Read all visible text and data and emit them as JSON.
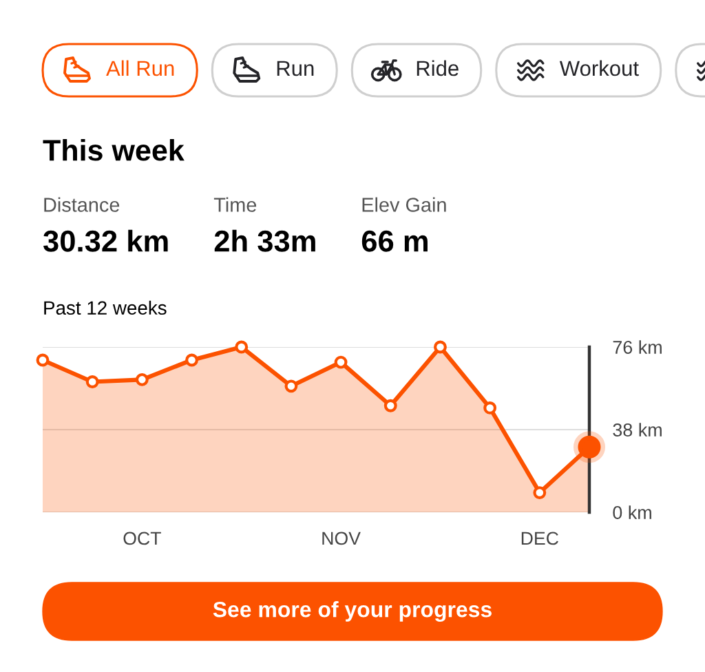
{
  "chart_data": [
    {
      "type": "other",
      "annotations": [
        "All Run",
        "Run",
        "Ride",
        "Workout"
      ]
    },
    {
      "type": "other",
      "title": "This week",
      "annotations": [
        "Distance",
        "30.32 km",
        "Time",
        "2h 33m",
        "Elev Gain",
        "66 m"
      ]
    },
    {
      "type": "area",
      "title": "Past 12 weeks",
      "categories": [
        null,
        null,
        "OCT",
        null,
        null,
        null,
        "NOV",
        null,
        null,
        null,
        "DEC",
        null
      ],
      "series": [
        {
          "color": "#fc5200",
          "values": [
            70,
            60,
            61,
            70,
            76,
            58,
            69,
            49,
            76,
            48,
            9,
            30
          ]
        },
        {
          "type": "scatter",
          "color": "#fc5200",
          "values": [
            null,
            null,
            null,
            null,
            null,
            null,
            null,
            null,
            null,
            null,
            null,
            30
          ]
        }
      ],
      "ylim": [
        0,
        76
      ],
      "yticks": [
        {
          "value": 76,
          "label": "76 km"
        },
        {
          "value": 38,
          "label": "38 km"
        },
        {
          "value": 0,
          "label": "0 km"
        }
      ],
      "grid": "y",
      "marker": "circle"
    },
    {
      "type": "other",
      "annotations": [
        "See more of your progress"
      ]
    }
  ]
}
